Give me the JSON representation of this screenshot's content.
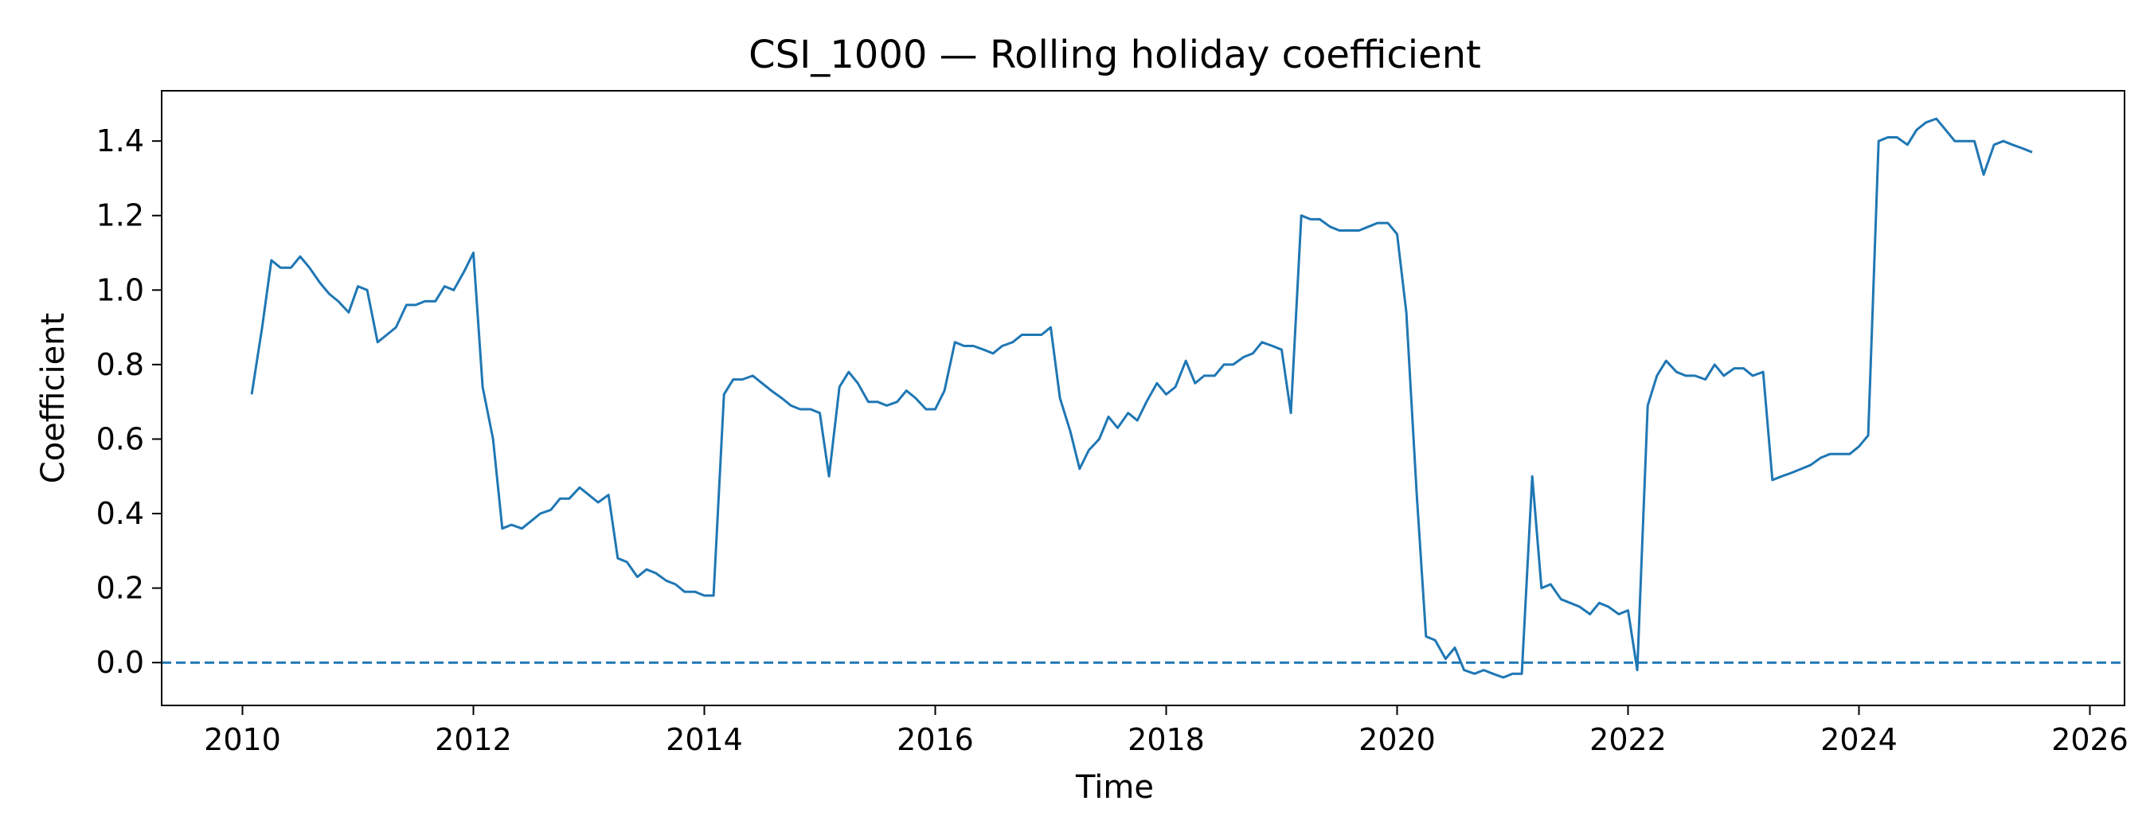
{
  "chart_data": {
    "type": "line",
    "title": "CSI_1000 — Rolling holiday coefficient",
    "xlabel": "Time",
    "ylabel": "Coefficient",
    "xlim": [
      2009.3,
      2026.3
    ],
    "ylim": [
      -0.115,
      1.535
    ],
    "x_ticks": [
      2010,
      2012,
      2014,
      2016,
      2018,
      2020,
      2022,
      2024,
      2026
    ],
    "y_ticks": [
      0.0,
      0.2,
      0.4,
      0.6,
      0.8,
      1.0,
      1.2,
      1.4
    ],
    "grid": false,
    "reference_line": {
      "y": 0.0,
      "style": "dashed"
    },
    "line_color": "#1f77b4",
    "series": [
      {
        "x": [
          2010.08,
          2010.17,
          2010.25,
          2010.33,
          2010.42,
          2010.5,
          2010.58,
          2010.67,
          2010.75,
          2010.83,
          2010.92,
          2011.0,
          2011.08,
          2011.17,
          2011.25,
          2011.33,
          2011.42,
          2011.5,
          2011.58,
          2011.67,
          2011.75,
          2011.83,
          2011.92,
          2012.0,
          2012.08,
          2012.17,
          2012.25,
          2012.33,
          2012.42,
          2012.5,
          2012.58,
          2012.67,
          2012.75,
          2012.83,
          2012.92,
          2013.0,
          2013.08,
          2013.17,
          2013.25,
          2013.33,
          2013.42,
          2013.5,
          2013.58,
          2013.67,
          2013.75,
          2013.83,
          2013.92,
          2014.0,
          2014.08,
          2014.17,
          2014.25,
          2014.33,
          2014.42,
          2014.5,
          2014.58,
          2014.67,
          2014.75,
          2014.83,
          2014.92,
          2015.0,
          2015.08,
          2015.17,
          2015.25,
          2015.33,
          2015.42,
          2015.5,
          2015.58,
          2015.67,
          2015.75,
          2015.83,
          2015.92,
          2016.0,
          2016.08,
          2016.17,
          2016.25,
          2016.33,
          2016.42,
          2016.5,
          2016.58,
          2016.67,
          2016.75,
          2016.83,
          2016.92,
          2017.0,
          2017.08,
          2017.17,
          2017.25,
          2017.33,
          2017.42,
          2017.5,
          2017.58,
          2017.67,
          2017.75,
          2017.83,
          2017.92,
          2018.0,
          2018.08,
          2018.17,
          2018.25,
          2018.33,
          2018.42,
          2018.5,
          2018.58,
          2018.67,
          2018.75,
          2018.83,
          2018.92,
          2019.0,
          2019.08,
          2019.17,
          2019.25,
          2019.33,
          2019.42,
          2019.5,
          2019.58,
          2019.67,
          2019.75,
          2019.83,
          2019.92,
          2020.0,
          2020.08,
          2020.17,
          2020.25,
          2020.33,
          2020.42,
          2020.5,
          2020.58,
          2020.67,
          2020.75,
          2020.83,
          2020.92,
          2021.0,
          2021.08,
          2021.17,
          2021.25,
          2021.33,
          2021.42,
          2021.5,
          2021.58,
          2021.67,
          2021.75,
          2021.83,
          2021.92,
          2022.0,
          2022.08,
          2022.17,
          2022.25,
          2022.33,
          2022.42,
          2022.5,
          2022.58,
          2022.67,
          2022.75,
          2022.83,
          2022.92,
          2023.0,
          2023.08,
          2023.17,
          2023.25,
          2023.33,
          2023.42,
          2023.5,
          2023.58,
          2023.67,
          2023.75,
          2023.83,
          2023.92,
          2024.0,
          2024.08,
          2024.17,
          2024.25,
          2024.33,
          2024.42,
          2024.5,
          2024.58,
          2024.67,
          2024.75,
          2024.83,
          2024.92,
          2025.0,
          2025.08,
          2025.17,
          2025.25,
          2025.33,
          2025.42,
          2025.5
        ],
        "y": [
          0.72,
          0.9,
          1.08,
          1.06,
          1.06,
          1.09,
          1.06,
          1.02,
          0.99,
          0.97,
          0.94,
          1.01,
          1.0,
          0.86,
          0.88,
          0.9,
          0.96,
          0.96,
          0.97,
          0.97,
          1.01,
          1.0,
          1.05,
          1.1,
          0.74,
          0.6,
          0.36,
          0.37,
          0.36,
          0.38,
          0.4,
          0.41,
          0.44,
          0.44,
          0.47,
          0.45,
          0.43,
          0.45,
          0.28,
          0.27,
          0.23,
          0.25,
          0.24,
          0.22,
          0.21,
          0.19,
          0.19,
          0.18,
          0.18,
          0.72,
          0.76,
          0.76,
          0.77,
          0.75,
          0.73,
          0.71,
          0.69,
          0.68,
          0.68,
          0.67,
          0.5,
          0.74,
          0.78,
          0.75,
          0.7,
          0.7,
          0.69,
          0.7,
          0.73,
          0.71,
          0.68,
          0.68,
          0.73,
          0.86,
          0.85,
          0.85,
          0.84,
          0.83,
          0.85,
          0.86,
          0.88,
          0.88,
          0.88,
          0.9,
          0.71,
          0.62,
          0.52,
          0.57,
          0.6,
          0.66,
          0.63,
          0.67,
          0.65,
          0.7,
          0.75,
          0.72,
          0.74,
          0.81,
          0.75,
          0.77,
          0.77,
          0.8,
          0.8,
          0.82,
          0.83,
          0.86,
          0.85,
          0.84,
          0.67,
          1.2,
          1.19,
          1.19,
          1.17,
          1.16,
          1.16,
          1.16,
          1.17,
          1.18,
          1.18,
          1.15,
          0.94,
          0.45,
          0.07,
          0.06,
          0.01,
          0.04,
          -0.02,
          -0.03,
          -0.02,
          -0.03,
          -0.04,
          -0.03,
          -0.03,
          0.5,
          0.2,
          0.21,
          0.17,
          0.16,
          0.15,
          0.13,
          0.16,
          0.15,
          0.13,
          0.14,
          -0.02,
          0.69,
          0.77,
          0.81,
          0.78,
          0.77,
          0.77,
          0.76,
          0.8,
          0.77,
          0.79,
          0.79,
          0.77,
          0.78,
          0.49,
          0.5,
          0.51,
          0.52,
          0.53,
          0.55,
          0.56,
          0.56,
          0.56,
          0.58,
          0.61,
          1.4,
          1.41,
          1.41,
          1.39,
          1.43,
          1.45,
          1.46,
          1.43,
          1.4,
          1.4,
          1.4,
          1.31,
          1.39,
          1.4,
          1.39,
          1.38,
          1.37
        ]
      }
    ]
  }
}
